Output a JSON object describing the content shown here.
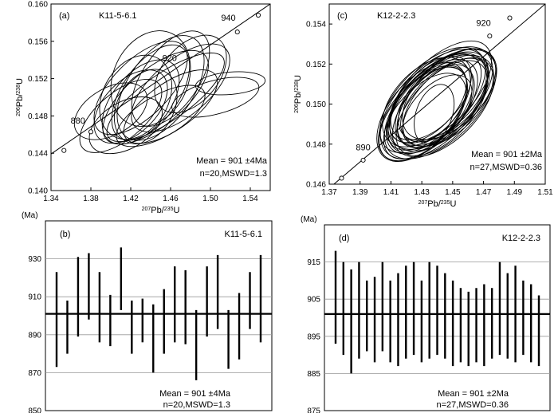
{
  "chart_data": [
    {
      "type": "scatter",
      "panel_label": "(a)",
      "sample": "K11-5-6.1",
      "xlabel": "²⁰⁷Pb/²³⁵U",
      "ylabel": "²⁰⁶Pb/²³⁸U",
      "xlim": [
        1.34,
        1.56
      ],
      "ylim": [
        0.14,
        0.16
      ],
      "xticks": [
        1.34,
        1.38,
        1.42,
        1.46,
        1.5,
        1.54
      ],
      "xtick_labels": [
        "1.34",
        "1.38",
        "1.42",
        "1.46",
        "1.50",
        "1.54"
      ],
      "yticks": [
        0.14,
        0.144,
        0.148,
        0.152,
        0.156,
        0.16
      ],
      "ytick_labels": [
        "0.140",
        "0.144",
        "0.148",
        "0.152",
        "0.156",
        "0.160"
      ],
      "concordia": {
        "points": [
          [
            1.3,
            0.141
          ],
          [
            1.56,
            0.16
          ]
        ],
        "age_markers": [
          [
            1.353,
            0.1443
          ],
          [
            1.38,
            0.1463
          ],
          [
            1.527,
            0.157
          ],
          [
            1.548,
            0.1588
          ]
        ],
        "age_labels": [
          {
            "text": "880",
            "x": 1.367,
            "y": 0.1472
          },
          {
            "text": "940",
            "x": 1.518,
            "y": 0.1582
          },
          {
            "text": "920",
            "x": 1.459,
            "y": 0.1539
          }
        ]
      },
      "error_ellipses": [
        {
          "cx": 1.44,
          "cy": 0.1505,
          "rx": 0.055,
          "ry": 0.003,
          "angle": 55
        },
        {
          "cx": 1.43,
          "cy": 0.1495,
          "rx": 0.05,
          "ry": 0.003,
          "angle": 50
        },
        {
          "cx": 1.45,
          "cy": 0.151,
          "rx": 0.06,
          "ry": 0.0035,
          "angle": 55
        },
        {
          "cx": 1.42,
          "cy": 0.149,
          "rx": 0.045,
          "ry": 0.0028,
          "angle": 45
        },
        {
          "cx": 1.445,
          "cy": 0.15,
          "rx": 0.065,
          "ry": 0.003,
          "angle": 40
        },
        {
          "cx": 1.41,
          "cy": 0.148,
          "rx": 0.05,
          "ry": 0.0025,
          "angle": 40
        },
        {
          "cx": 1.46,
          "cy": 0.152,
          "rx": 0.055,
          "ry": 0.003,
          "angle": 55
        },
        {
          "cx": 1.435,
          "cy": 0.149,
          "rx": 0.04,
          "ry": 0.003,
          "angle": 60
        },
        {
          "cx": 1.4,
          "cy": 0.1485,
          "rx": 0.04,
          "ry": 0.0025,
          "angle": 30
        },
        {
          "cx": 1.455,
          "cy": 0.15,
          "rx": 0.07,
          "ry": 0.0025,
          "angle": 35
        },
        {
          "cx": 1.425,
          "cy": 0.15,
          "rx": 0.045,
          "ry": 0.0035,
          "angle": 60
        },
        {
          "cx": 1.47,
          "cy": 0.151,
          "rx": 0.06,
          "ry": 0.003,
          "angle": 40
        },
        {
          "cx": 1.44,
          "cy": 0.152,
          "rx": 0.05,
          "ry": 0.004,
          "angle": 65
        },
        {
          "cx": 1.415,
          "cy": 0.147,
          "rx": 0.04,
          "ry": 0.0025,
          "angle": 30
        },
        {
          "cx": 1.48,
          "cy": 0.1525,
          "rx": 0.045,
          "ry": 0.003,
          "angle": 50
        },
        {
          "cx": 1.45,
          "cy": 0.148,
          "rx": 0.05,
          "ry": 0.0022,
          "angle": 30
        },
        {
          "cx": 1.43,
          "cy": 0.151,
          "rx": 0.06,
          "ry": 0.003,
          "angle": 45
        },
        {
          "cx": 1.505,
          "cy": 0.15,
          "rx": 0.045,
          "ry": 0.0018,
          "angle": 15
        },
        {
          "cx": 1.52,
          "cy": 0.1515,
          "rx": 0.035,
          "ry": 0.0012,
          "angle": 5
        },
        {
          "cx": 1.46,
          "cy": 0.149,
          "rx": 0.055,
          "ry": 0.0025,
          "angle": 35
        }
      ],
      "annotations": [
        "Mean = 901 ±4Ma",
        "n=20,MSWD=1.3"
      ]
    },
    {
      "type": "scatter",
      "panel_label": "(c)",
      "sample": "K12-2-2.3",
      "xlabel": "²⁰⁷Pb/²³⁵U",
      "ylabel": "²⁰⁶Pb/²³⁸U",
      "xlim": [
        1.37,
        1.51
      ],
      "ylim": [
        0.146,
        0.155
      ],
      "xticks": [
        1.37,
        1.39,
        1.41,
        1.43,
        1.45,
        1.47,
        1.49,
        1.51
      ],
      "xtick_labels": [
        "1.37",
        "1.39",
        "1.41",
        "1.43",
        "1.45",
        "1.47",
        "1.49",
        "1.51"
      ],
      "yticks": [
        0.146,
        0.148,
        0.15,
        0.152,
        0.154
      ],
      "ytick_labels": [
        "0.146",
        "0.148",
        "0.150",
        "0.152",
        "0.154"
      ],
      "concordia": {
        "points": [
          [
            1.37,
            0.1458
          ],
          [
            1.51,
            0.155
          ]
        ],
        "age_markers": [
          [
            1.378,
            0.1463
          ],
          [
            1.392,
            0.1472
          ],
          [
            1.474,
            0.1534
          ],
          [
            1.487,
            0.1543
          ]
        ],
        "age_labels": [
          {
            "text": "890",
            "x": 1.392,
            "y": 0.1477
          },
          {
            "text": "920",
            "x": 1.47,
            "y": 0.1539
          }
        ]
      },
      "error_ellipses": [
        {
          "cx": 1.44,
          "cy": 0.15,
          "rx": 0.04,
          "ry": 0.0016,
          "angle": 45
        },
        {
          "cx": 1.435,
          "cy": 0.1498,
          "rx": 0.036,
          "ry": 0.0015,
          "angle": 48
        },
        {
          "cx": 1.442,
          "cy": 0.1503,
          "rx": 0.042,
          "ry": 0.0017,
          "angle": 44
        },
        {
          "cx": 1.43,
          "cy": 0.1496,
          "rx": 0.038,
          "ry": 0.0016,
          "angle": 50
        },
        {
          "cx": 1.445,
          "cy": 0.1502,
          "rx": 0.035,
          "ry": 0.0014,
          "angle": 42
        },
        {
          "cx": 1.438,
          "cy": 0.15,
          "rx": 0.044,
          "ry": 0.0018,
          "angle": 46
        },
        {
          "cx": 1.432,
          "cy": 0.1494,
          "rx": 0.034,
          "ry": 0.0014,
          "angle": 47
        },
        {
          "cx": 1.448,
          "cy": 0.1505,
          "rx": 0.037,
          "ry": 0.0016,
          "angle": 43
        },
        {
          "cx": 1.436,
          "cy": 0.1499,
          "rx": 0.03,
          "ry": 0.0013,
          "angle": 50
        },
        {
          "cx": 1.441,
          "cy": 0.1501,
          "rx": 0.039,
          "ry": 0.0017,
          "angle": 45
        },
        {
          "cx": 1.434,
          "cy": 0.1497,
          "rx": 0.041,
          "ry": 0.0016,
          "angle": 46
        },
        {
          "cx": 1.444,
          "cy": 0.1504,
          "rx": 0.036,
          "ry": 0.0015,
          "angle": 44
        },
        {
          "cx": 1.439,
          "cy": 0.1499,
          "rx": 0.032,
          "ry": 0.0014,
          "angle": 49
        },
        {
          "cx": 1.437,
          "cy": 0.1502,
          "rx": 0.043,
          "ry": 0.0017,
          "angle": 45
        },
        {
          "cx": 1.443,
          "cy": 0.1498,
          "rx": 0.038,
          "ry": 0.0015,
          "angle": 47
        },
        {
          "cx": 1.433,
          "cy": 0.1501,
          "rx": 0.035,
          "ry": 0.0016,
          "angle": 46
        },
        {
          "cx": 1.446,
          "cy": 0.1503,
          "rx": 0.04,
          "ry": 0.0016,
          "angle": 45
        },
        {
          "cx": 1.431,
          "cy": 0.1495,
          "rx": 0.037,
          "ry": 0.0015,
          "angle": 48
        },
        {
          "cx": 1.44,
          "cy": 0.1497,
          "rx": 0.028,
          "ry": 0.0012,
          "angle": 46
        },
        {
          "cx": 1.442,
          "cy": 0.15,
          "rx": 0.045,
          "ry": 0.0018,
          "angle": 44
        },
        {
          "cx": 1.436,
          "cy": 0.1503,
          "rx": 0.033,
          "ry": 0.0014,
          "angle": 47
        },
        {
          "cx": 1.444,
          "cy": 0.1499,
          "rx": 0.041,
          "ry": 0.0017,
          "angle": 45
        },
        {
          "cx": 1.438,
          "cy": 0.1501,
          "rx": 0.039,
          "ry": 0.0015,
          "angle": 46
        },
        {
          "cx": 1.434,
          "cy": 0.15,
          "rx": 0.031,
          "ry": 0.0013,
          "angle": 45
        },
        {
          "cx": 1.447,
          "cy": 0.1501,
          "rx": 0.036,
          "ry": 0.0015,
          "angle": 44
        },
        {
          "cx": 1.438,
          "cy": 0.1495,
          "rx": 0.02,
          "ry": 0.0009,
          "angle": 70
        },
        {
          "cx": 1.442,
          "cy": 0.1506,
          "rx": 0.042,
          "ry": 0.0016,
          "angle": 45
        }
      ],
      "annotations": [
        "Mean = 901 ±2Ma",
        "n=27,MSWD=0.36"
      ]
    },
    {
      "type": "bar",
      "panel_label": "(b)",
      "sample": "K11-5-6.1",
      "ylabel": "(Ma)",
      "ylim": [
        850,
        950
      ],
      "yticks": [
        850,
        870,
        890,
        910,
        930
      ],
      "ytick_labels": [
        "850",
        "870",
        "890",
        "910",
        "930"
      ],
      "mean": 901,
      "errors": [
        [
          873,
          923
        ],
        [
          880,
          908
        ],
        [
          889,
          931
        ],
        [
          898,
          933
        ],
        [
          886,
          923
        ],
        [
          884,
          911
        ],
        [
          903,
          936
        ],
        [
          880,
          908
        ],
        [
          886,
          909
        ],
        [
          870,
          906
        ],
        [
          880,
          914
        ],
        [
          886,
          926
        ],
        [
          885,
          924
        ],
        [
          866,
          903
        ],
        [
          889,
          926
        ],
        [
          893,
          932
        ],
        [
          872,
          903
        ],
        [
          877,
          912
        ],
        [
          893,
          923
        ],
        [
          886,
          932
        ]
      ],
      "annotations": [
        "Mean = 901 ±4Ma",
        "n=20,MSWD=1.3"
      ]
    },
    {
      "type": "bar",
      "panel_label": "(d)",
      "sample": "K12-2-2.3",
      "ylabel": "(Ma)",
      "ylim": [
        875,
        925
      ],
      "yticks": [
        875,
        885,
        895,
        905,
        915
      ],
      "ytick_labels": [
        "875",
        "885",
        "895",
        "905",
        "915"
      ],
      "mean": 901,
      "errors": [
        [
          893,
          918
        ],
        [
          890,
          915
        ],
        [
          885,
          913
        ],
        [
          889,
          915
        ],
        [
          891,
          910
        ],
        [
          888,
          911
        ],
        [
          891,
          915
        ],
        [
          888,
          910
        ],
        [
          887,
          912
        ],
        [
          889,
          914
        ],
        [
          890,
          915
        ],
        [
          888,
          910
        ],
        [
          889,
          915
        ],
        [
          890,
          914
        ],
        [
          889,
          912
        ],
        [
          887,
          910
        ],
        [
          888,
          908
        ],
        [
          887,
          907
        ],
        [
          888,
          908
        ],
        [
          887,
          909
        ],
        [
          889,
          908
        ],
        [
          890,
          915
        ],
        [
          889,
          912
        ],
        [
          888,
          914
        ],
        [
          890,
          910
        ],
        [
          888,
          909
        ],
        [
          887,
          906
        ]
      ],
      "annotations": [
        "Mean = 901 ±2Ma",
        "n=27,MSWD=0.36"
      ]
    }
  ]
}
